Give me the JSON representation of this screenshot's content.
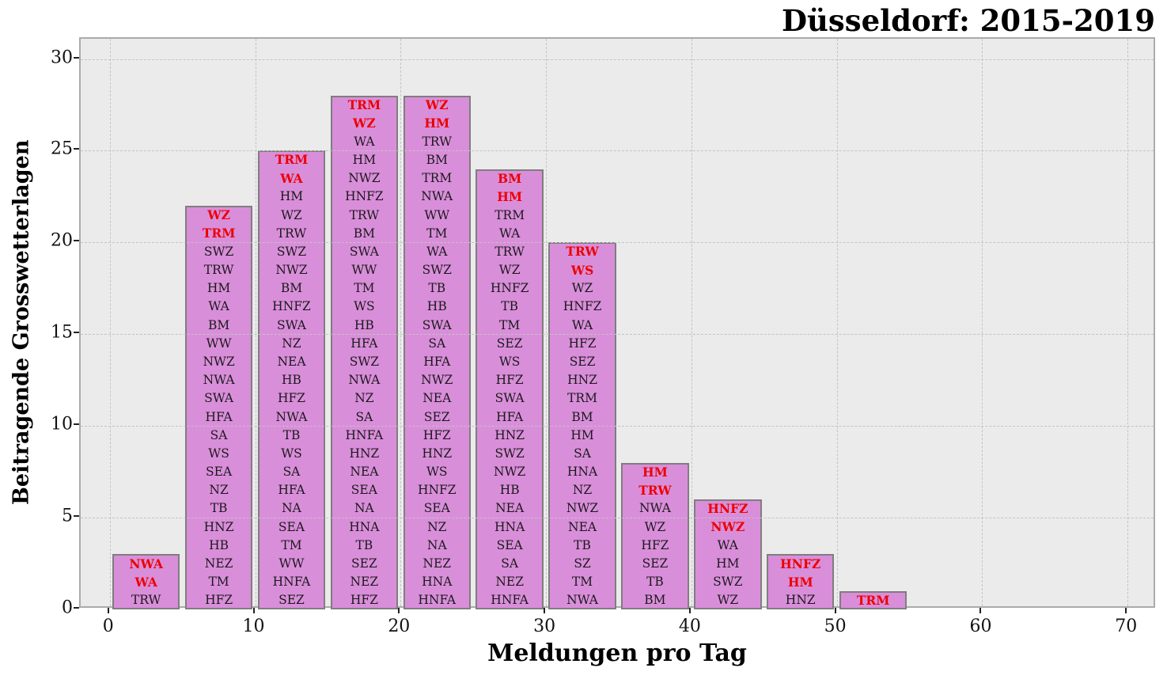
{
  "title": "Düsseldorf: 2015-2019",
  "chart_data": {
    "type": "bar",
    "title": "Düsseldorf: 2015-2019",
    "xlabel": "Meldungen pro Tag",
    "ylabel": "Beitragende Grosswetterlagen",
    "x_ticks": [
      0,
      10,
      20,
      30,
      40,
      50,
      60,
      70
    ],
    "y_ticks": [
      0,
      5,
      10,
      15,
      20,
      25,
      30
    ],
    "xlim": [
      -2,
      72
    ],
    "ylim": [
      0,
      31.1
    ],
    "grid": true,
    "legend": "none",
    "bar_width": 4.65,
    "colors": {
      "bar_fill": "#d98eda",
      "bar_edge": "#7e7e7e",
      "highlight_text": "#ec0000",
      "normal_text": "#1a1a1a",
      "axes_background": "#ebebeb",
      "grid_color": "#c3c3c3"
    },
    "bars": [
      {
        "center": 2.5,
        "count": 3,
        "highlight_count": 2,
        "labels": [
          "NWA",
          "WA",
          "TRW"
        ]
      },
      {
        "center": 7.5,
        "count": 22,
        "highlight_count": 2,
        "labels": [
          "WZ",
          "TRM",
          "SWZ",
          "TRW",
          "HM",
          "WA",
          "BM",
          "WW",
          "NWZ",
          "NWA",
          "SWA",
          "HFA",
          "SA",
          "WS",
          "SEA",
          "NZ",
          "TB",
          "HNZ",
          "HB",
          "NEZ",
          "TM",
          "HFZ"
        ]
      },
      {
        "center": 12.5,
        "count": 25,
        "highlight_count": 2,
        "labels": [
          "TRM",
          "WA",
          "HM",
          "WZ",
          "TRW",
          "SWZ",
          "NWZ",
          "BM",
          "HNFZ",
          "SWA",
          "NZ",
          "NEA",
          "HB",
          "HFZ",
          "NWA",
          "TB",
          "WS",
          "SA",
          "HFA",
          "NA",
          "SEA",
          "TM",
          "WW",
          "HNFA",
          "SEZ"
        ]
      },
      {
        "center": 17.5,
        "count": 28,
        "highlight_count": 2,
        "labels": [
          "TRM",
          "WZ",
          "WA",
          "HM",
          "NWZ",
          "HNFZ",
          "TRW",
          "BM",
          "SWA",
          "WW",
          "TM",
          "WS",
          "HB",
          "HFA",
          "SWZ",
          "NWA",
          "NZ",
          "SA",
          "HNFA",
          "HNZ",
          "NEA",
          "SEA",
          "NA",
          "HNA",
          "TB",
          "SEZ",
          "NEZ",
          "HFZ"
        ]
      },
      {
        "center": 22.5,
        "count": 28,
        "highlight_count": 2,
        "labels": [
          "WZ",
          "HM",
          "TRW",
          "BM",
          "TRM",
          "NWA",
          "WW",
          "TM",
          "WA",
          "SWZ",
          "TB",
          "HB",
          "SWA",
          "SA",
          "HFA",
          "NWZ",
          "NEA",
          "SEZ",
          "HFZ",
          "HNZ",
          "WS",
          "HNFZ",
          "SEA",
          "NZ",
          "NA",
          "NEZ",
          "HNA",
          "HNFA"
        ]
      },
      {
        "center": 27.5,
        "count": 24,
        "highlight_count": 2,
        "labels": [
          "BM",
          "HM",
          "TRM",
          "WA",
          "TRW",
          "WZ",
          "HNFZ",
          "TB",
          "TM",
          "SEZ",
          "WS",
          "HFZ",
          "SWA",
          "HFA",
          "HNZ",
          "SWZ",
          "NWZ",
          "HB",
          "NEA",
          "HNA",
          "SEA",
          "SA",
          "NEZ",
          "HNFA"
        ]
      },
      {
        "center": 32.5,
        "count": 20,
        "highlight_count": 2,
        "labels": [
          "TRW",
          "WS",
          "WZ",
          "HNFZ",
          "WA",
          "HFZ",
          "SEZ",
          "HNZ",
          "TRM",
          "BM",
          "HM",
          "SA",
          "HNA",
          "NZ",
          "NWZ",
          "NEA",
          "TB",
          "SZ",
          "TM",
          "NWA"
        ]
      },
      {
        "center": 37.5,
        "count": 8,
        "highlight_count": 2,
        "labels": [
          "HM",
          "TRW",
          "NWA",
          "WZ",
          "HFZ",
          "SEZ",
          "TB",
          "BM"
        ]
      },
      {
        "center": 42.5,
        "count": 6,
        "highlight_count": 2,
        "labels": [
          "HNFZ",
          "NWZ",
          "WA",
          "HM",
          "SWZ",
          "WZ"
        ]
      },
      {
        "center": 47.5,
        "count": 3,
        "highlight_count": 2,
        "labels": [
          "HNFZ",
          "HM",
          "HNZ"
        ]
      },
      {
        "center": 52.5,
        "count": 1,
        "highlight_count": 1,
        "labels": [
          "TRM"
        ]
      }
    ]
  }
}
